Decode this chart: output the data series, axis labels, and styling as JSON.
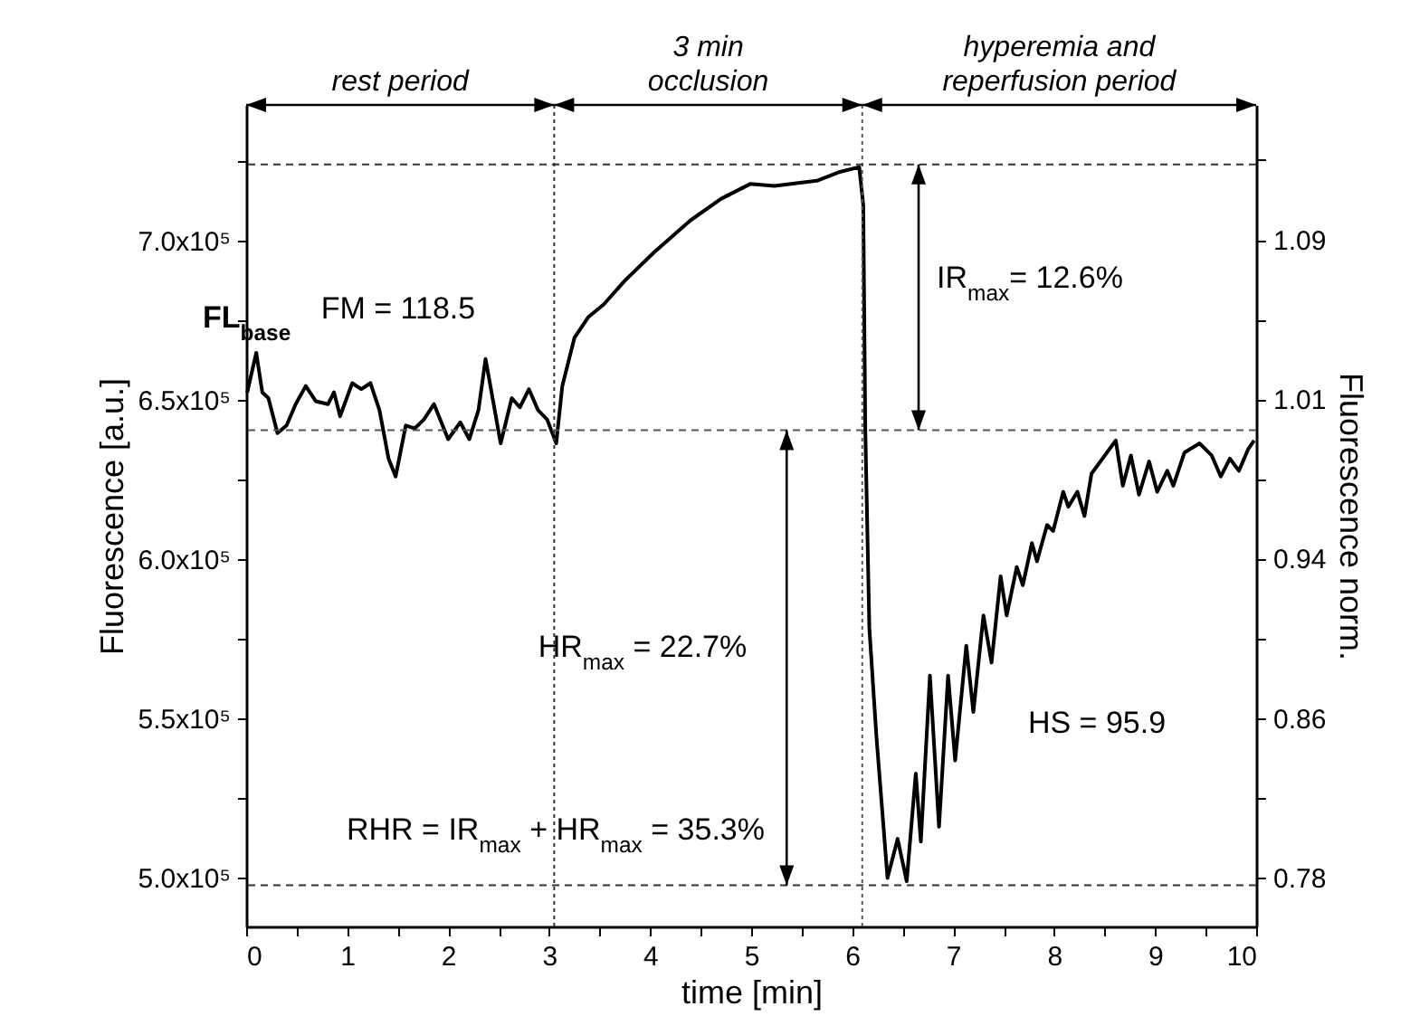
{
  "chart_data": {
    "type": "line",
    "xlabel": "time [min]",
    "ylabel": "Fluorescence [a.u.]",
    "y2label": "Fluorescence norm.",
    "xlim": [
      0,
      10
    ],
    "ylim": [
      484800,
      742600
    ],
    "y2lim": [
      0.757,
      1.159
    ],
    "xticks": [
      0,
      {
        "value": 0.5,
        "label": null
      },
      1,
      {
        "value": 1.5,
        "label": null
      },
      2,
      {
        "value": 2.5,
        "label": null
      },
      3,
      {
        "value": 3.5,
        "label": null
      },
      4,
      {
        "value": 4.5,
        "label": null
      },
      5,
      {
        "value": 5.5,
        "label": null
      },
      6,
      {
        "value": 6.5,
        "label": null
      },
      7,
      {
        "value": 7.5,
        "label": null
      },
      8,
      {
        "value": 8.5,
        "label": null
      },
      9,
      {
        "value": 9.5,
        "label": null
      },
      10
    ],
    "yticks": [
      {
        "value": 500000,
        "label": "5.0x10⁵"
      },
      {
        "value": 525000,
        "label": null
      },
      {
        "value": 550000,
        "label": "5.5x10⁵"
      },
      {
        "value": 575000,
        "label": null
      },
      {
        "value": 600000,
        "label": "6.0x10⁵"
      },
      {
        "value": 625000,
        "label": null
      },
      {
        "value": 650000,
        "label": "6.5x10⁵"
      },
      {
        "value": 675000,
        "label": null
      },
      {
        "value": 700000,
        "label": "7.0x10⁵"
      },
      {
        "value": 725000,
        "label": null
      }
    ],
    "y2ticks": [
      {
        "value": 0.781,
        "label": "0.78"
      },
      {
        "value": 0.82,
        "label": null
      },
      {
        "value": 0.859,
        "label": "0.86"
      },
      {
        "value": 0.898,
        "label": null
      },
      {
        "value": 0.937,
        "label": "0.94"
      },
      {
        "value": 0.976,
        "label": null
      },
      {
        "value": 1.015,
        "label": "1.01"
      },
      {
        "value": 1.054,
        "label": null
      },
      {
        "value": 1.093,
        "label": "1.09"
      },
      {
        "value": 1.132,
        "label": null
      }
    ],
    "x": [
      0.01,
      0.1,
      0.16,
      0.22,
      0.31,
      0.4,
      0.49,
      0.59,
      0.69,
      0.81,
      0.87,
      0.93,
      1.05,
      1.14,
      1.23,
      1.32,
      1.41,
      1.48,
      1.58,
      1.67,
      1.76,
      1.86,
      2.0,
      2.12,
      2.21,
      2.3,
      2.37,
      2.44,
      2.52,
      2.63,
      2.71,
      2.8,
      2.89,
      2.98,
      3.07,
      3.13,
      3.25,
      3.39,
      3.54,
      3.75,
      4.04,
      4.4,
      4.7,
      4.99,
      5.23,
      5.65,
      5.88,
      6.07,
      6.11,
      6.13,
      6.17,
      6.24,
      6.35,
      6.45,
      6.54,
      6.63,
      6.68,
      6.77,
      6.86,
      6.95,
      7.02,
      7.13,
      7.2,
      7.3,
      7.38,
      7.47,
      7.53,
      7.63,
      7.69,
      7.78,
      7.83,
      7.93,
      7.99,
      8.09,
      8.14,
      8.23,
      8.3,
      8.37,
      8.61,
      8.68,
      8.76,
      8.84,
      8.94,
      9.02,
      9.12,
      9.18,
      9.29,
      9.44,
      9.56,
      9.65,
      9.74,
      9.83,
      9.92,
      9.98
    ],
    "series": [
      {
        "color": "#000000",
        "values": [
          652400,
          664800,
          652400,
          650600,
          639600,
          642000,
          648700,
          654400,
          649600,
          648700,
          652400,
          644900,
          655300,
          653400,
          655300,
          646800,
          631600,
          626000,
          642000,
          641100,
          643900,
          648700,
          637700,
          643000,
          637700,
          646800,
          662900,
          650600,
          636400,
          650600,
          647700,
          653400,
          646800,
          643900,
          636400,
          654400,
          669500,
          676100,
          680000,
          687500,
          696400,
          706400,
          713100,
          717800,
          717200,
          718800,
          721600,
          723100,
          711200,
          641000,
          578600,
          544500,
          500000,
          512300,
          499000,
          532800,
          511400,
          563500,
          516100,
          563500,
          536900,
          572900,
          552100,
          582400,
          567600,
          594700,
          582400,
          597600,
          591900,
          605100,
          599400,
          610800,
          608900,
          621200,
          616500,
          621200,
          613600,
          626900,
          637300,
          623100,
          632600,
          620300,
          630700,
          621200,
          627800,
          623100,
          633500,
          636400,
          632600,
          626000,
          631600,
          627800,
          634500,
          637300
        ]
      }
    ],
    "ref_lines": [
      {
        "axis": "y",
        "value": 640500,
        "label": "FL$_{base}$",
        "color": "#555555",
        "line_style": "dashed"
      },
      {
        "axis": "x",
        "value": 3.05,
        "color": "#333333",
        "line_style": "dotted"
      },
      {
        "axis": "x",
        "value": 6.1,
        "color": "#555555",
        "line_style": "dotted"
      },
      {
        "axis": "y",
        "value": 723900,
        "color": "#333333",
        "line_style": "dashed"
      },
      {
        "axis": "y",
        "value": 497700,
        "color": "#333333",
        "line_style": "dashed"
      }
    ],
    "annotations": [
      "rest period",
      "3 min\nocclusion",
      "hyperemia and\nreperfusion period",
      "FM = 118.5",
      "IR$_{max}$= 12.6%",
      "HR$_{max}$ = 22.7%",
      "RHR = IR$_{max}$ + HR$_{max}$ = 35.3%",
      "HS = 95.9"
    ]
  }
}
